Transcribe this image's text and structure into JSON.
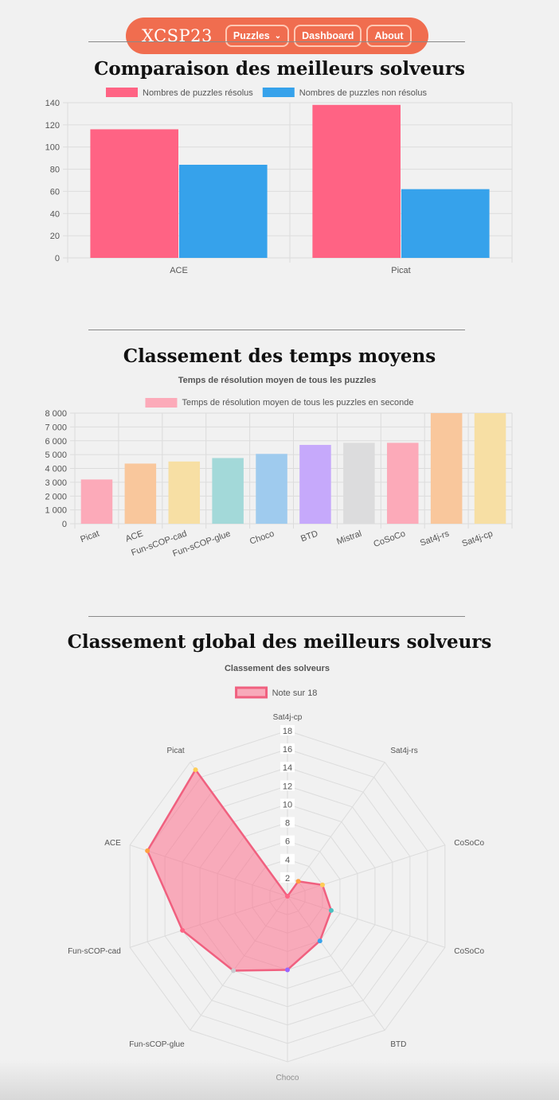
{
  "nav": {
    "brand": "XCSP23",
    "items": [
      {
        "label": "Puzzles",
        "has_dropdown": true
      },
      {
        "label": "Dashboard"
      },
      {
        "label": "About"
      }
    ],
    "colors": {
      "bar": "#f06d4f",
      "border": "#ffc8b4"
    }
  },
  "sections": [
    {
      "title": "Comparaison des meilleurs solveurs"
    },
    {
      "title": "Classement des temps moyens"
    },
    {
      "title": "Classement global des meilleurs solveurs"
    }
  ],
  "chart_data": [
    {
      "type": "bar",
      "title": "",
      "categories": [
        "ACE",
        "Picat"
      ],
      "series": [
        {
          "name": "Nombres de puzzles résolus",
          "values": [
            116,
            138
          ],
          "color": "#ff6384"
        },
        {
          "name": "Nombres de puzzles non résolus",
          "values": [
            84,
            62
          ],
          "color": "#36a2eb"
        }
      ],
      "ylim": [
        0,
        140
      ],
      "yticks": [
        0,
        20,
        40,
        60,
        80,
        100,
        120,
        140
      ],
      "legend": "top",
      "grid": true
    },
    {
      "type": "bar",
      "title": "Temps de résolution moyen de tous les puzzles",
      "categories": [
        "Picat",
        "ACE",
        "Fun-sCOP-cad",
        "Fun-sCOP-glue",
        "Choco",
        "BTD",
        "Mistral",
        "CoSoCo",
        "Sat4j-rs",
        "Sat4j-cp"
      ],
      "series": [
        {
          "name": "Temps de résolution moyen de tous les puzzles en seconde",
          "values": [
            3200,
            4350,
            4500,
            4750,
            5050,
            5700,
            5850,
            5850,
            8000,
            8000
          ]
        }
      ],
      "bar_colors": [
        "#fcaab9",
        "#f9c79c",
        "#f7dfa4",
        "#a3d9d9",
        "#9fcbee",
        "#c6a9fb",
        "#dcdcdd",
        "#fcaab9",
        "#f9c79c",
        "#f7dfa4"
      ],
      "ylim": [
        0,
        8000
      ],
      "yticks": [
        "0",
        "1 000",
        "2 000",
        "3 000",
        "4 000",
        "5 000",
        "6 000",
        "7 000",
        "8 000"
      ],
      "legend": "top",
      "grid": true
    },
    {
      "type": "radar",
      "title": "Classement des solveurs",
      "labels": [
        "Sat4j-cp",
        "Sat4j-rs",
        "CoSoCo",
        "CoSoCo",
        "BTD",
        "Choco",
        "Fun-sCOP-glue",
        "Fun-sCOP-cad",
        "ACE",
        "Picat"
      ],
      "series": [
        {
          "name": "Note sur 18",
          "values": [
            0,
            2,
            4,
            5,
            6,
            8,
            10,
            12,
            16,
            17
          ],
          "fill": "rgba(255,99,132,0.5)",
          "stroke": "#f0607f"
        }
      ],
      "point_colors": [
        "#ff6384",
        "#ff9f40",
        "#ffcd56",
        "#4bc0c0",
        "#36a2eb",
        "#9966ff",
        "#c9cbcf",
        "#ff6384",
        "#ff9f40",
        "#ffcd56"
      ],
      "rlim": [
        0,
        18
      ],
      "rticks": [
        2,
        4,
        6,
        8,
        10,
        12,
        14,
        16,
        18
      ],
      "legend": "top"
    }
  ]
}
